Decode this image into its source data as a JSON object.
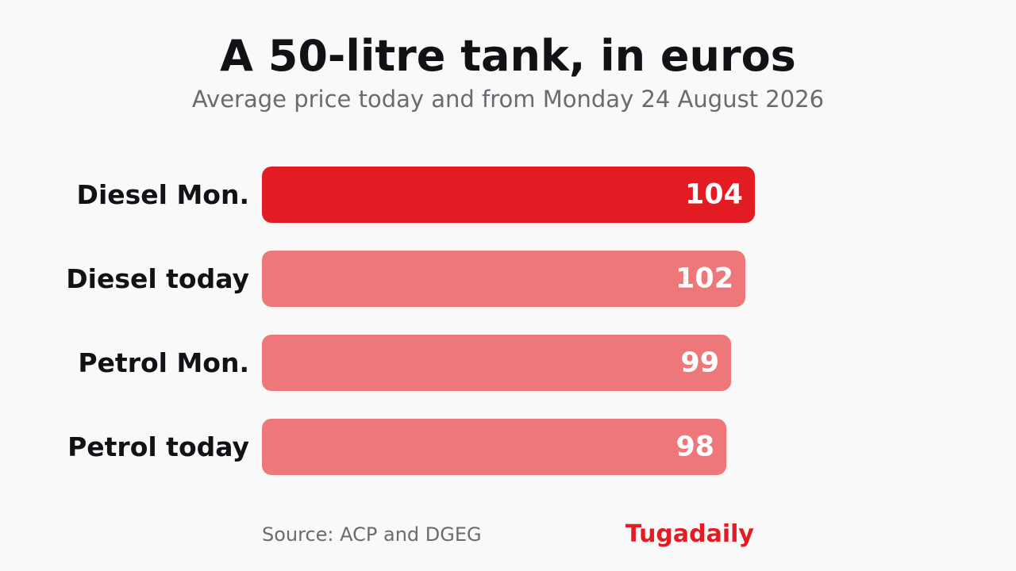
{
  "header": {
    "title": "A 50-litre tank, in euros",
    "subtitle": "Average price today and from Monday 24 August 2026"
  },
  "footer": {
    "source": "Source: ACP and DGEG",
    "brand": "Tugadaily"
  },
  "colors": {
    "highlight": "#e31b23",
    "muted": "#ee777a",
    "label": "#111216",
    "value_text": "#ffffff",
    "brand": "#e31b23"
  },
  "chart_data": {
    "type": "bar",
    "orientation": "horizontal",
    "title": "A 50-litre tank, in euros",
    "subtitle": "Average price today and from Monday 24 August 2026",
    "categories": [
      "Diesel Mon.",
      "Diesel today",
      "Petrol Mon.",
      "Petrol today"
    ],
    "values": [
      104,
      102,
      99,
      98
    ],
    "highlighted": [
      "Diesel Mon."
    ],
    "xlim": [
      0,
      104
    ],
    "xlabel": "",
    "ylabel": "",
    "grid": false,
    "legend": "none"
  }
}
